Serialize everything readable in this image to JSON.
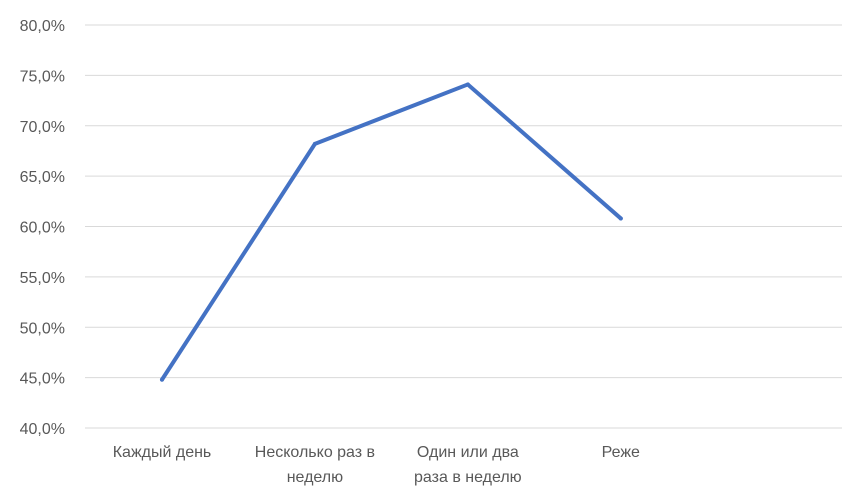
{
  "chart_data": {
    "type": "line",
    "title": "",
    "xlabel": "",
    "ylabel": "",
    "categories": [
      [
        "Каждый день"
      ],
      [
        "Несколько раз в",
        "неделю"
      ],
      [
        "Один или два",
        "раза в неделю"
      ],
      [
        "Реже"
      ]
    ],
    "y_ticks": [
      "40,0%",
      "45,0%",
      "50,0%",
      "55,0%",
      "60,0%",
      "65,0%",
      "70,0%",
      "75,0%",
      "80,0%"
    ],
    "ylim": [
      40,
      80
    ],
    "y_step": 5,
    "grid": true,
    "legend": "none",
    "series": [
      {
        "values": [
          44.8,
          68.2,
          74.1,
          60.8
        ],
        "color": "#4472C4"
      }
    ]
  }
}
